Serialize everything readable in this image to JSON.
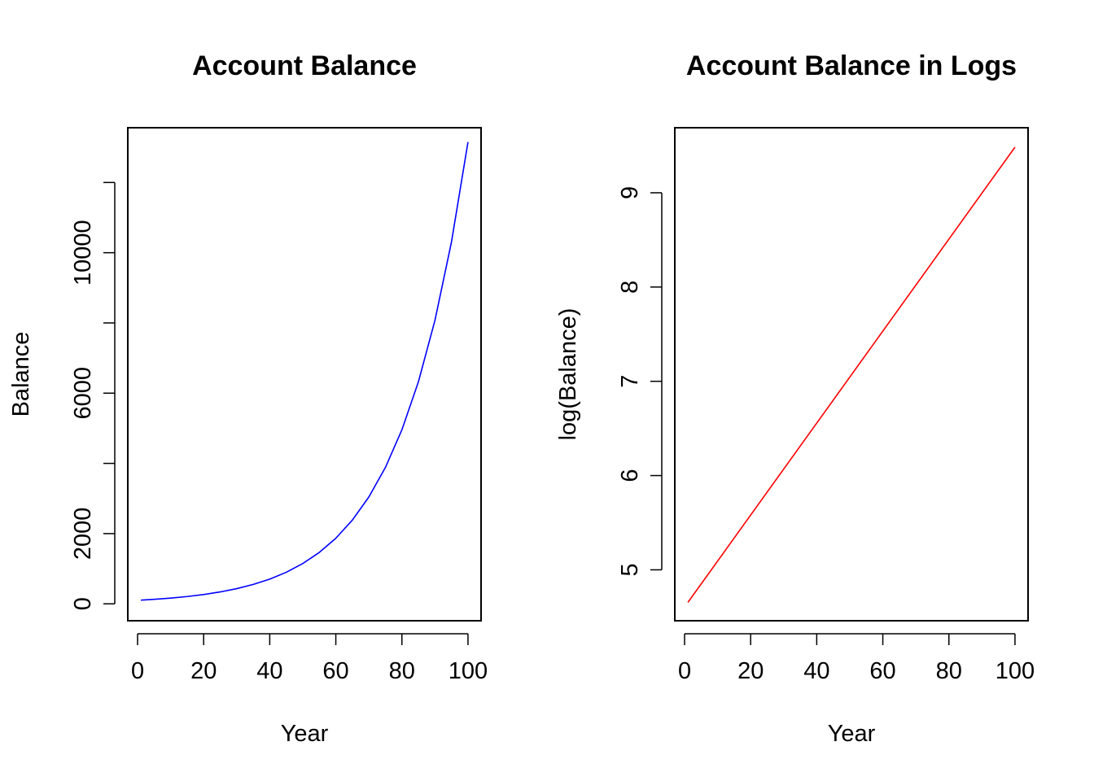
{
  "chart_data": [
    {
      "type": "line",
      "title": "Account Balance",
      "xlabel": "Year",
      "ylabel": "Balance",
      "xlim": [
        -2.96,
        103.96
      ],
      "ylim": [
        -481.3,
        13559.7
      ],
      "x_ticks": [
        0,
        20,
        40,
        60,
        80,
        100
      ],
      "x_tick_labels": [
        "0",
        "20",
        "40",
        "60",
        "80",
        "100"
      ],
      "y_ticks": [
        0,
        2000,
        4000,
        6000,
        8000,
        10000,
        12000
      ],
      "y_tick_labels": [
        "0",
        "2000",
        "",
        "6000",
        "",
        "10000",
        ""
      ],
      "grid": false,
      "legend": "none",
      "series": [
        {
          "color": "#0000ff",
          "x": [
            1,
            5,
            10,
            15,
            20,
            25,
            30,
            35,
            40,
            45,
            50,
            55,
            60,
            65,
            70,
            75,
            80,
            85,
            90,
            95,
            100
          ],
          "y": [
            105,
            128,
            163,
            208,
            265,
            339,
            432,
            552,
            704,
            899,
            1147,
            1464,
            1868,
            2384,
            3043,
            3883,
            4956,
            6325,
            8073,
            10303,
            13150
          ]
        }
      ]
    },
    {
      "type": "line",
      "title": "Account Balance in Logs",
      "xlabel": "Year",
      "ylabel": "log(Balance)",
      "xlim": [
        -2.96,
        103.96
      ],
      "ylim": [
        4.46,
        9.69
      ],
      "x_ticks": [
        0,
        20,
        40,
        60,
        80,
        100
      ],
      "x_tick_labels": [
        "0",
        "20",
        "40",
        "60",
        "80",
        "100"
      ],
      "y_ticks": [
        5,
        6,
        7,
        8,
        9
      ],
      "y_tick_labels": [
        "5",
        "6",
        "7",
        "8",
        "9"
      ],
      "grid": false,
      "legend": "none",
      "series": [
        {
          "color": "#ff0000",
          "x": [
            1,
            100
          ],
          "y": [
            4.654,
            9.484
          ]
        }
      ]
    }
  ]
}
